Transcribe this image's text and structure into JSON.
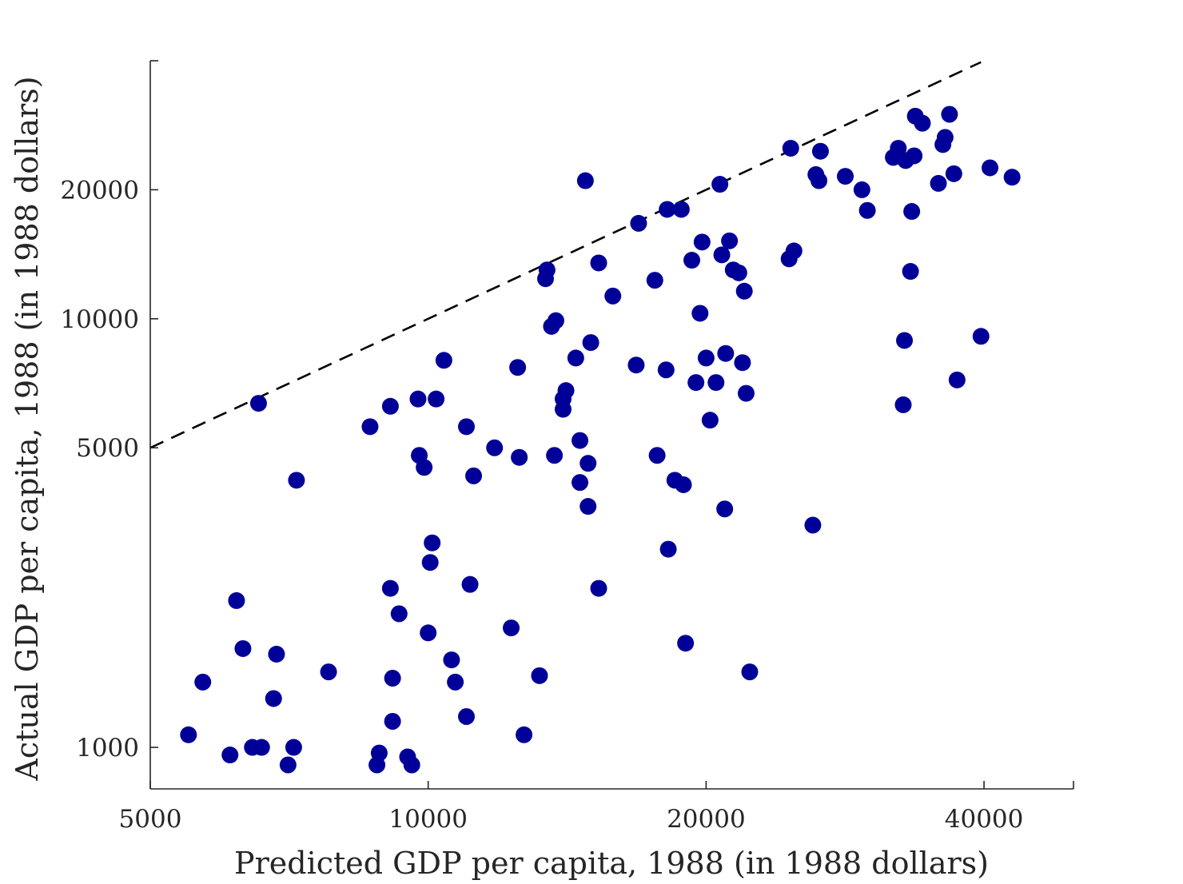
{
  "chart_data": {
    "type": "scatter",
    "title": "",
    "xlabel": "Predicted GDP per capita, 1988 (in 1988 dollars)",
    "ylabel": "Actual GDP per capita, 1988 (in 1988 dollars)",
    "x_scale": "log",
    "y_scale": "log",
    "xlim": [
      5000,
      50000
    ],
    "ylim": [
      800,
      40000
    ],
    "x_ticks": [
      5000,
      10000,
      20000,
      40000
    ],
    "x_tick_labels": [
      "5000",
      "10000",
      "20000",
      "40000"
    ],
    "y_ticks": [
      1000,
      5000,
      10000,
      20000
    ],
    "y_tick_labels": [
      "1000",
      "5000",
      "10000",
      "20000"
    ],
    "grid": false,
    "marker_color": "#000099",
    "reference_line": {
      "style": "dashed",
      "color": "#000000",
      "x": [
        5000,
        39700
      ],
      "y": [
        5000,
        39700
      ]
    },
    "points": [
      [
        5500,
        1070
      ],
      [
        5700,
        1420
      ],
      [
        6100,
        960
      ],
      [
        6200,
        2200
      ],
      [
        6300,
        1700
      ],
      [
        6450,
        1000
      ],
      [
        6600,
        1000
      ],
      [
        6550,
        6350
      ],
      [
        6800,
        1300
      ],
      [
        6850,
        1650
      ],
      [
        7050,
        910
      ],
      [
        7150,
        1000
      ],
      [
        7200,
        4200
      ],
      [
        7800,
        1500
      ],
      [
        8650,
        5600
      ],
      [
        8800,
        910
      ],
      [
        8850,
        970
      ],
      [
        9100,
        2350
      ],
      [
        9100,
        6250
      ],
      [
        9150,
        1150
      ],
      [
        9150,
        1450
      ],
      [
        9300,
        2050
      ],
      [
        9500,
        950
      ],
      [
        9600,
        910
      ],
      [
        9750,
        6500
      ],
      [
        9780,
        4800
      ],
      [
        9900,
        4500
      ],
      [
        10000,
        1850
      ],
      [
        10050,
        2700
      ],
      [
        10100,
        3000
      ],
      [
        10200,
        6500
      ],
      [
        10400,
        8000
      ],
      [
        10600,
        1600
      ],
      [
        10700,
        1420
      ],
      [
        11000,
        1180
      ],
      [
        11000,
        5600
      ],
      [
        11100,
        2400
      ],
      [
        11200,
        4300
      ],
      [
        11800,
        5000
      ],
      [
        12300,
        1900
      ],
      [
        12500,
        7700
      ],
      [
        12550,
        4750
      ],
      [
        12700,
        1070
      ],
      [
        13200,
        1470
      ],
      [
        13400,
        12400
      ],
      [
        13450,
        13000
      ],
      [
        13600,
        9600
      ],
      [
        13700,
        4800
      ],
      [
        13750,
        9900
      ],
      [
        14000,
        6150
      ],
      [
        14000,
        6500
      ],
      [
        14100,
        6800
      ],
      [
        14450,
        8100
      ],
      [
        14600,
        5200
      ],
      [
        14600,
        4150
      ],
      [
        14900,
        3650
      ],
      [
        14900,
        4600
      ],
      [
        15000,
        8800
      ],
      [
        14800,
        21000
      ],
      [
        15300,
        2350
      ],
      [
        15300,
        13500
      ],
      [
        15850,
        11300
      ],
      [
        16800,
        7800
      ],
      [
        16900,
        16700
      ],
      [
        17600,
        12300
      ],
      [
        17700,
        4800
      ],
      [
        18100,
        7600
      ],
      [
        18150,
        18000
      ],
      [
        18200,
        2900
      ],
      [
        18500,
        4200
      ],
      [
        18800,
        18000
      ],
      [
        18900,
        4100
      ],
      [
        19000,
        1750
      ],
      [
        19300,
        13700
      ],
      [
        19500,
        7100
      ],
      [
        19700,
        10300
      ],
      [
        19800,
        15100
      ],
      [
        20000,
        8100
      ],
      [
        20200,
        5800
      ],
      [
        20500,
        7100
      ],
      [
        20700,
        20600
      ],
      [
        20800,
        14100
      ],
      [
        20950,
        3600
      ],
      [
        21000,
        8300
      ],
      [
        21200,
        15200
      ],
      [
        21400,
        13000
      ],
      [
        21700,
        12800
      ],
      [
        21900,
        7900
      ],
      [
        22000,
        11600
      ],
      [
        22100,
        6700
      ],
      [
        22300,
        1500
      ],
      [
        24600,
        13800
      ],
      [
        24700,
        25000
      ],
      [
        24900,
        14400
      ],
      [
        26100,
        3300
      ],
      [
        26300,
        21700
      ],
      [
        26500,
        21000
      ],
      [
        26600,
        24600
      ],
      [
        28300,
        21500
      ],
      [
        29500,
        20000
      ],
      [
        29900,
        17900
      ],
      [
        31900,
        23800
      ],
      [
        32300,
        25000
      ],
      [
        32800,
        8900
      ],
      [
        32900,
        23400
      ],
      [
        32700,
        6300
      ],
      [
        33300,
        12900
      ],
      [
        33400,
        17800
      ],
      [
        33600,
        24000
      ],
      [
        33700,
        29700
      ],
      [
        34300,
        28600
      ],
      [
        35700,
        20700
      ],
      [
        36100,
        25500
      ],
      [
        36300,
        26500
      ],
      [
        36700,
        30000
      ],
      [
        37100,
        21800
      ],
      [
        37400,
        7200
      ],
      [
        39700,
        9100
      ],
      [
        40600,
        22500
      ],
      [
        42900,
        21400
      ]
    ]
  }
}
